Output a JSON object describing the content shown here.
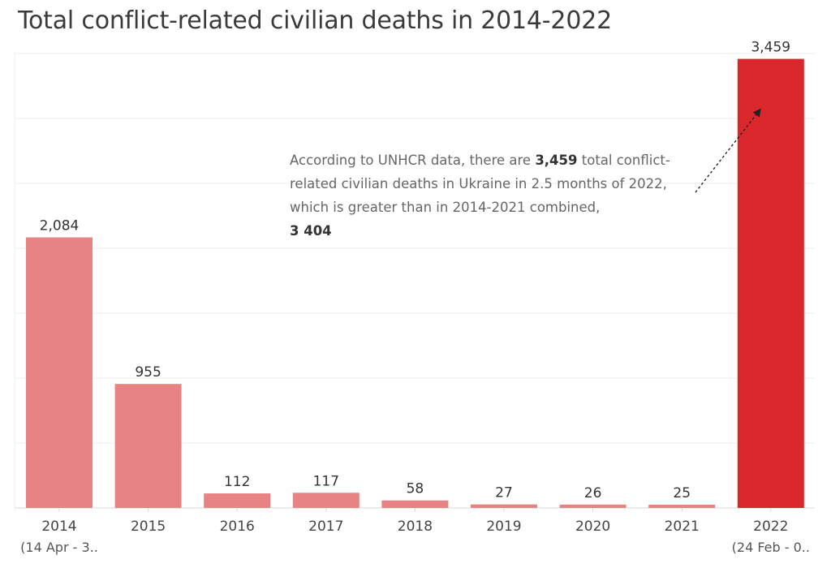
{
  "title": "Total conflict-related civilian deaths in 2014-2022",
  "annotation": {
    "before": "According to UNHCR data, there are ",
    "bold_value": "3,459",
    "middle": "  total conflict-related civilian deaths in Ukraine in 2.5 months of 2022, which is greater than in 2014-2021 combined,",
    "bold_total": "3 404"
  },
  "colors": {
    "bar": "#e88383",
    "highlight": "#d9272c",
    "grid": "#ececec",
    "axis": "#d8d8d8"
  },
  "chart_data": {
    "type": "bar",
    "title": "Total conflict-related civilian deaths in 2014-2022",
    "categories": [
      "2014",
      "2015",
      "2016",
      "2017",
      "2018",
      "2019",
      "2020",
      "2021",
      "2022"
    ],
    "category_sublabels": [
      "(14 Apr - 3..",
      "",
      "",
      "",
      "",
      "",
      "",
      "",
      "(24 Feb - 0.."
    ],
    "values": [
      2084,
      955,
      112,
      117,
      58,
      27,
      26,
      25,
      3459
    ],
    "value_labels": [
      "2,084",
      "955",
      "112",
      "117",
      "58",
      "27",
      "26",
      "25",
      "3,459"
    ],
    "highlight_index": 8,
    "ylim": [
      0,
      3500
    ],
    "grid": true,
    "xlabel": "",
    "ylabel": ""
  }
}
